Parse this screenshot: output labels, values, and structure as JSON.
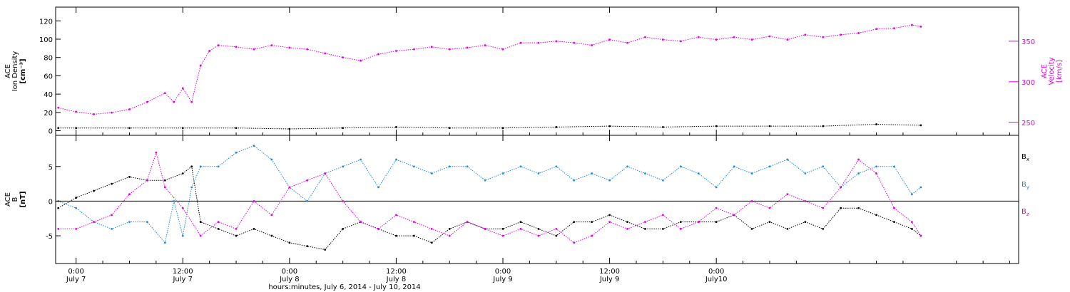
{
  "colors": {
    "density": "#000000",
    "velocity": "#e000e0",
    "bx": "#000000",
    "by": "#1e88e5",
    "bz": "#e000e0",
    "frame": "#000000"
  },
  "chart_data": [
    {
      "type": "scatter",
      "panel": "top",
      "left_axis": {
        "label_lines": [
          "ACE",
          "Ion Density",
          "[cm⁻³]"
        ],
        "ticks": [
          0,
          20,
          40,
          60,
          80,
          100,
          120
        ],
        "ylim": [
          -5,
          135
        ]
      },
      "right_axis": {
        "label_lines": [
          "ACE",
          "Velocity",
          "[km/s]"
        ],
        "ticks": [
          250,
          300,
          350
        ],
        "ylim": [
          234,
          392
        ]
      },
      "grid": false,
      "series": [
        {
          "name": "Ion Density",
          "axis": "left",
          "color_key": "density",
          "x": [
            -2,
            0,
            6,
            12,
            18,
            24,
            30,
            36,
            42,
            48,
            54,
            60,
            66,
            72,
            78,
            84,
            90,
            95
          ],
          "y": [
            3,
            3,
            3,
            3,
            3,
            2,
            3,
            4,
            3,
            3,
            4,
            5,
            4,
            5,
            5,
            5,
            7,
            6
          ]
        },
        {
          "name": "Velocity",
          "axis": "right",
          "color_key": "velocity",
          "x": [
            -2,
            0,
            2,
            4,
            6,
            8,
            10,
            11,
            12,
            13,
            14,
            15,
            16,
            18,
            20,
            22,
            24,
            26,
            28,
            30,
            32,
            34,
            36,
            38,
            40,
            42,
            44,
            46,
            48,
            50,
            52,
            54,
            56,
            58,
            60,
            62,
            64,
            66,
            68,
            70,
            72,
            74,
            76,
            78,
            80,
            82,
            84,
            86,
            88,
            90,
            92,
            94,
            95
          ],
          "y": [
            268,
            263,
            260,
            262,
            266,
            275,
            286,
            275,
            292,
            275,
            320,
            338,
            345,
            343,
            340,
            345,
            342,
            340,
            335,
            330,
            326,
            334,
            338,
            340,
            343,
            340,
            342,
            345,
            340,
            348,
            348,
            350,
            348,
            345,
            352,
            348,
            355,
            352,
            350,
            355,
            352,
            355,
            352,
            356,
            352,
            358,
            355,
            358,
            360,
            365,
            366,
            370,
            368
          ]
        }
      ]
    },
    {
      "type": "scatter",
      "panel": "bottom",
      "left_axis": {
        "label_lines": [
          "ACE",
          "B",
          "[nT]"
        ],
        "ticks": [
          -5,
          0,
          5
        ],
        "ylim": [
          -9,
          9.5
        ]
      },
      "grid": false,
      "zero_line": true,
      "series": [
        {
          "name": "Bx",
          "color_key": "bx",
          "x": [
            -2,
            0,
            2,
            4,
            6,
            8,
            10,
            12,
            13,
            14,
            16,
            18,
            20,
            22,
            24,
            26,
            28,
            30,
            32,
            34,
            36,
            38,
            40,
            42,
            44,
            46,
            48,
            50,
            52,
            54,
            56,
            58,
            60,
            62,
            64,
            66,
            68,
            70,
            72,
            74,
            76,
            78,
            80,
            82,
            84,
            86,
            88,
            90,
            92,
            94,
            95
          ],
          "y": [
            -1,
            0.5,
            1.5,
            2.5,
            3.5,
            3,
            3,
            4,
            5,
            -3,
            -4,
            -5,
            -4,
            -5,
            -6,
            -6.5,
            -7,
            -4,
            -3,
            -4,
            -5,
            -5,
            -6,
            -4,
            -3,
            -4,
            -4,
            -3,
            -4,
            -5,
            -3,
            -3,
            -2,
            -3,
            -4,
            -4,
            -3,
            -3,
            -3,
            -2,
            -4,
            -3,
            -4,
            -3,
            -4,
            -1,
            -1,
            -2,
            -3,
            -4,
            -5
          ]
        },
        {
          "name": "By",
          "color_key": "by",
          "x": [
            -2,
            0,
            2,
            4,
            6,
            8,
            10,
            11,
            12,
            13,
            14,
            16,
            18,
            20,
            22,
            24,
            26,
            28,
            30,
            32,
            34,
            36,
            38,
            40,
            42,
            44,
            46,
            48,
            50,
            52,
            54,
            56,
            58,
            60,
            62,
            64,
            66,
            68,
            70,
            72,
            74,
            76,
            78,
            80,
            82,
            84,
            86,
            88,
            90,
            92,
            94,
            95
          ],
          "y": [
            0,
            -1,
            -3,
            -4,
            -3,
            -3,
            -6,
            0,
            -5,
            2,
            5,
            5,
            7,
            8,
            6,
            2,
            0,
            4,
            5,
            6,
            2,
            6,
            5,
            4,
            5,
            5,
            3,
            4,
            5,
            4,
            5,
            3,
            4,
            3,
            5,
            4,
            3,
            5,
            4,
            2,
            5,
            4,
            5,
            6,
            4,
            5,
            2,
            4,
            5,
            5,
            1,
            2
          ]
        },
        {
          "name": "Bz",
          "color_key": "bz",
          "x": [
            -2,
            0,
            2,
            4,
            6,
            8,
            9,
            10,
            12,
            14,
            16,
            18,
            20,
            22,
            24,
            26,
            28,
            30,
            32,
            34,
            36,
            38,
            40,
            42,
            44,
            46,
            48,
            50,
            52,
            54,
            56,
            58,
            60,
            62,
            64,
            66,
            68,
            70,
            72,
            74,
            76,
            78,
            80,
            82,
            84,
            86,
            88,
            90,
            92,
            94,
            95
          ],
          "y": [
            -4,
            -4,
            -3,
            -2,
            1,
            3,
            7,
            2,
            -1,
            -5,
            -3,
            -4,
            0,
            -2,
            2,
            3,
            4,
            0,
            -3,
            -4,
            -2,
            -3,
            -4,
            -5,
            -3,
            -4,
            -5,
            -4,
            -5,
            -4,
            -6,
            -5,
            -3,
            -4,
            -3,
            -2,
            -4,
            -3,
            -1,
            -2,
            0,
            -1,
            1,
            0,
            -1,
            2,
            6,
            4,
            -1,
            -3,
            -5
          ]
        }
      ]
    }
  ],
  "legend": {
    "bx_label": "B",
    "bx_sub": "x",
    "by_label": "B",
    "by_sub": "y",
    "bz_label": "B",
    "bz_sub": "z"
  },
  "x_axis": {
    "xlim": [
      -2.3,
      106
    ],
    "ticks": [
      {
        "t": 0,
        "hm": "0:00",
        "day": "July 7"
      },
      {
        "t": 12,
        "hm": "12:00",
        "day": "July 7"
      },
      {
        "t": 24,
        "hm": "0:00",
        "day": "July 8"
      },
      {
        "t": 36,
        "hm": "12:00",
        "day": "July 8"
      },
      {
        "t": 48,
        "hm": "0:00",
        "day": "July 9"
      },
      {
        "t": 60,
        "hm": "12:00",
        "day": "July 9"
      },
      {
        "t": 72,
        "hm": "0:00",
        "day": "July10"
      }
    ],
    "title": "hours:minutes, July  6, 2014 - July 10, 2014"
  }
}
